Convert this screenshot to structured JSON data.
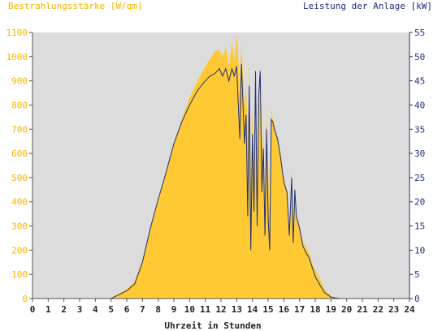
{
  "chart_data": {
    "type": "area",
    "left_title": "Bestrahlungsstärke [W/qm]",
    "right_title": "Leistung der Anlage [kW]",
    "xlabel": "Uhrzeit in Stunden",
    "x_ticks": [
      "0",
      "1",
      "2",
      "3",
      "4",
      "5",
      "6",
      "7",
      "8",
      "9",
      "10",
      "11",
      "12",
      "13",
      "14",
      "15",
      "16",
      "17",
      "18",
      "19",
      "20",
      "21",
      "22",
      "23",
      "24"
    ],
    "y_left_ticks": [
      "0",
      "100",
      "200",
      "300",
      "400",
      "500",
      "600",
      "700",
      "800",
      "900",
      "1000",
      "1100"
    ],
    "y_right_ticks": [
      "0",
      "5",
      "10",
      "15",
      "20",
      "25",
      "30",
      "35",
      "40",
      "45",
      "50",
      "55"
    ],
    "xlim": [
      0,
      24
    ],
    "ylim_left": [
      0,
      1100
    ],
    "ylim_right": [
      0,
      55
    ],
    "colors": {
      "irradiance": "#ffc933",
      "power": "#1f2f7a",
      "left_axis_text": "#f5b400",
      "right_axis_text": "#1f2f7a",
      "plot_bg": "#dcdcdc"
    },
    "series": [
      {
        "axis": "left",
        "style": "filled-area",
        "x": [
          0,
          5.0,
          5.5,
          6.0,
          6.5,
          7.0,
          7.5,
          8.0,
          8.5,
          9.0,
          9.5,
          10.0,
          10.5,
          11.0,
          11.3,
          11.6,
          11.9,
          12.1,
          12.3,
          12.5,
          12.7,
          12.85,
          13.0,
          13.1,
          13.2,
          13.3,
          13.4,
          13.5,
          13.6,
          13.7,
          13.8,
          13.9,
          14.0,
          14.1,
          14.2,
          14.3,
          14.4,
          14.5,
          14.6,
          14.7,
          14.8,
          14.9,
          15.0,
          15.1,
          15.2,
          15.3,
          15.4,
          15.5,
          15.6,
          15.8,
          16.0,
          16.2,
          16.35,
          16.5,
          16.6,
          16.7,
          16.8,
          17.0,
          17.2,
          17.4,
          17.6,
          17.8,
          18.0,
          18.3,
          18.6,
          19.0,
          19.3,
          19.6,
          19.9,
          20.1,
          24
        ],
        "y": [
          0,
          0,
          20,
          40,
          70,
          160,
          290,
          410,
          520,
          640,
          740,
          830,
          900,
          960,
          990,
          1020,
          1030,
          1000,
          1040,
          960,
          1060,
          980,
          1090,
          1000,
          860,
          1060,
          930,
          800,
          880,
          620,
          980,
          450,
          780,
          550,
          900,
          420,
          820,
          940,
          600,
          700,
          400,
          770,
          560,
          330,
          790,
          740,
          710,
          690,
          660,
          600,
          500,
          450,
          280,
          560,
          230,
          450,
          330,
          300,
          240,
          210,
          190,
          150,
          120,
          80,
          40,
          10,
          5,
          2,
          0,
          0,
          0
        ]
      },
      {
        "axis": "right",
        "style": "line",
        "x": [
          0,
          5.0,
          5.5,
          6.0,
          6.5,
          7.0,
          7.5,
          8.0,
          8.5,
          9.0,
          9.5,
          10.0,
          10.5,
          11.0,
          11.3,
          11.6,
          11.9,
          12.1,
          12.3,
          12.5,
          12.7,
          12.85,
          13.0,
          13.1,
          13.2,
          13.3,
          13.4,
          13.5,
          13.6,
          13.7,
          13.8,
          13.9,
          14.0,
          14.1,
          14.2,
          14.3,
          14.4,
          14.5,
          14.6,
          14.7,
          14.8,
          14.9,
          15.0,
          15.1,
          15.2,
          15.3,
          15.4,
          15.5,
          15.6,
          15.8,
          16.0,
          16.2,
          16.35,
          16.5,
          16.6,
          16.7,
          16.8,
          17.0,
          17.2,
          17.4,
          17.6,
          17.8,
          18.0,
          18.3,
          18.6,
          19.0,
          19.3,
          19.6,
          19.9,
          20.1,
          24
        ],
        "y": [
          0,
          0,
          0.8,
          1.6,
          3.0,
          7.5,
          14.5,
          20.5,
          26.0,
          32.0,
          36.5,
          40.0,
          43.0,
          45.0,
          46.0,
          46.5,
          47.5,
          46.0,
          47.5,
          45.0,
          47.5,
          46.0,
          48.0,
          40.0,
          33.0,
          48.5,
          40.0,
          32.0,
          38.0,
          17.0,
          44.0,
          10.0,
          34.0,
          18.0,
          47.0,
          15.0,
          42.0,
          47.0,
          22.0,
          31.0,
          13.0,
          35.0,
          17.0,
          10.0,
          37.0,
          36.5,
          35.0,
          34.0,
          33.0,
          29.0,
          24.0,
          22.0,
          13.0,
          25.0,
          11.5,
          22.5,
          17.0,
          14.5,
          11.0,
          9.5,
          8.5,
          6.5,
          4.5,
          2.8,
          1.2,
          0.3,
          0.1,
          0,
          0,
          0,
          0
        ]
      }
    ],
    "grid": false,
    "legend": "none"
  }
}
